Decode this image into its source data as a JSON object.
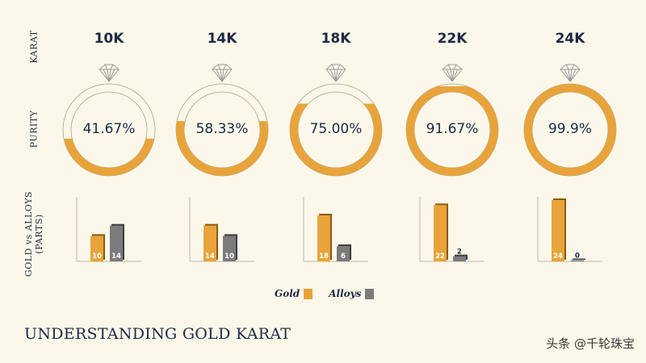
{
  "side_labels": {
    "karat": "KARAT",
    "purity": "PURITY",
    "parts_line1": "GOLD vs ALLOYS",
    "parts_line2": "(PARTS)"
  },
  "colors": {
    "gold": "#e8a43a",
    "alloys": "#7b7b7b",
    "text": "#1d2a44",
    "background": "#fbf8ea"
  },
  "chart_data": [
    {
      "type": "pie",
      "title": "",
      "categories": [
        "10K",
        "14K",
        "18K",
        "22K",
        "24K"
      ],
      "values": [
        41.67,
        58.33,
        75.0,
        91.67,
        99.9
      ],
      "value_labels": [
        "41.67%",
        "58.33%",
        "75.00%",
        "91.67%",
        "99.9%"
      ]
    },
    {
      "type": "bar",
      "title": "",
      "categories": [
        "10K",
        "14K",
        "18K",
        "22K",
        "24K"
      ],
      "series": [
        {
          "name": "Gold",
          "values": [
            10,
            14,
            18,
            22,
            24
          ]
        },
        {
          "name": "Alloys",
          "values": [
            14,
            10,
            6,
            2,
            0
          ]
        }
      ],
      "ylim": [
        0,
        24
      ]
    }
  ],
  "legend": {
    "gold_label": "Gold",
    "alloys_label": "Alloys"
  },
  "footer": {
    "title": "UNDERSTANDING GOLD KARAT",
    "watermark": "头条 @千轮珠宝"
  }
}
